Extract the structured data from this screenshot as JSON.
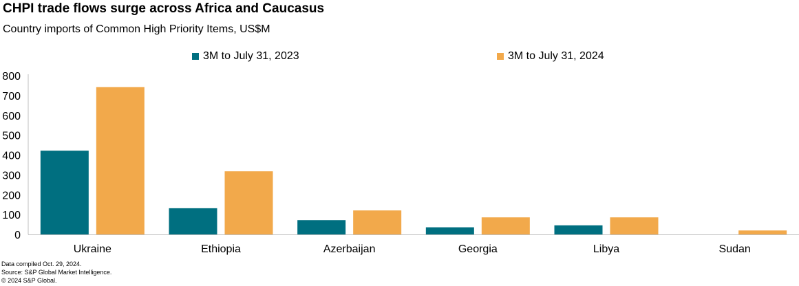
{
  "title": "CHPI trade flows surge across Africa and Caucasus",
  "subtitle": "Country imports of Common High Priority Items, US$M",
  "colors": {
    "series_2023": "#006F80",
    "series_2024": "#F2A94B",
    "axis": "#bfbfbf"
  },
  "chart_data": {
    "type": "bar",
    "title": "CHPI trade flows surge across Africa and Caucasus",
    "subtitle": "Country imports of Common High Priority Items, US$M",
    "xlabel": "",
    "ylabel": "",
    "categories": [
      "Ukraine",
      "Ethiopia",
      "Azerbaijan",
      "Georgia",
      "Libya",
      "Sudan"
    ],
    "series": [
      {
        "name": "3M to July 31, 2023",
        "values": [
          422,
          132,
          72,
          36,
          46,
          0
        ]
      },
      {
        "name": "3M to July 31, 2024",
        "values": [
          742,
          318,
          121,
          86,
          86,
          20
        ]
      }
    ],
    "ylim": [
      0,
      800
    ],
    "yticks": [
      0,
      100,
      200,
      300,
      400,
      500,
      600,
      700,
      800
    ],
    "grid": false,
    "legend_position": "top-center"
  },
  "notes": [
    "Data compiled Oct. 29, 2024.",
    "Source: S&P Global Market Intelligence.",
    "© 2024 S&P Global."
  ]
}
